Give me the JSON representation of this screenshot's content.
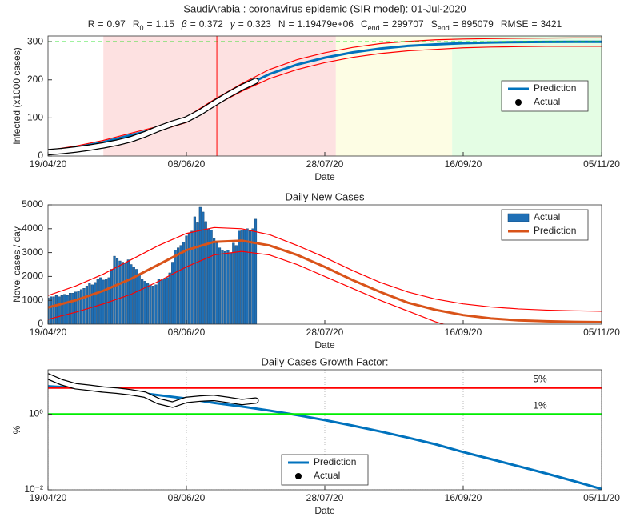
{
  "title": "SaudiArabia : coronavirus epidemic (SIR model): 01-Jul-2020",
  "param_sep": "=",
  "params": [
    {
      "name": "R",
      "value": 0.97
    },
    {
      "name": "R",
      "sub": "0",
      "value": 1.15
    },
    {
      "name": "β",
      "value": 0.372
    },
    {
      "name": "γ",
      "value": 0.323
    },
    {
      "name": "N",
      "value": 1194790,
      "value_label": "1.19479e+06"
    },
    {
      "name": "C",
      "sub": "end",
      "value": 299707
    },
    {
      "name": "S",
      "sub": "end",
      "value": 895079
    },
    {
      "name": "RMSE",
      "value": 3421
    }
  ],
  "chart_data": [
    {
      "type": "line",
      "xlabel": "Date",
      "ylabel": "Infected (x1000 cases)",
      "xlim": [
        "19/04/20",
        "05/11/20"
      ],
      "xticks": [
        "19/04/20",
        "08/06/20",
        "28/07/20",
        "16/09/20",
        "05/11/20"
      ],
      "ylim": [
        0,
        315
      ],
      "yticks": [
        0,
        100,
        200,
        300
      ],
      "grid": false,
      "legend": "right",
      "regions": [
        {
          "start": "09/05/20",
          "end": "01/08/20",
          "color": "#fde1e1"
        },
        {
          "start": "01/08/20",
          "end": "12/09/20",
          "color": "#fdfde4"
        },
        {
          "start": "12/09/20",
          "end": "05/11/20",
          "color": "#e4fde4"
        }
      ],
      "vline": {
        "x": "19/06/20",
        "color": "#ff0000"
      },
      "hline": {
        "value": 299.707,
        "color": "#00dd00"
      },
      "x": [
        "19/04/20",
        "29/04/20",
        "09/05/20",
        "19/05/20",
        "29/05/20",
        "08/06/20",
        "18/06/20",
        "28/06/20",
        "08/07/20",
        "18/07/20",
        "28/07/20",
        "07/08/20",
        "17/08/20",
        "27/08/20",
        "06/09/20",
        "16/09/20",
        "26/09/20",
        "06/10/20",
        "16/10/20",
        "26/10/20",
        "05/11/20"
      ],
      "bounds": [
        {
          "color": "#ff0000",
          "values": [
            15,
            26,
            41,
            60,
            78,
            102,
            148,
            190,
            227,
            253,
            271,
            285,
            295,
            301,
            305,
            307,
            308,
            309,
            309.5,
            310,
            310
          ]
        },
        {
          "color": "#ff0000",
          "values": [
            9,
            18,
            31,
            50,
            66,
            88,
            132,
            170,
            203,
            227,
            245,
            259,
            269,
            276,
            280,
            284,
            286,
            287,
            288,
            288,
            288
          ]
        }
      ],
      "series": [
        {
          "name": "Prediction",
          "style": "line",
          "color": "#0072bd",
          "values": [
            12,
            22,
            36,
            55,
            72,
            95,
            140,
            180,
            215,
            240,
            258,
            272,
            282,
            289,
            293,
            296,
            298,
            299,
            299.5,
            299.7,
            299.7
          ]
        },
        {
          "name": "Actual",
          "style": "marker",
          "color": "#000000",
          "x": [
            "19/04/20",
            "24/04/20",
            "29/04/20",
            "04/05/20",
            "09/05/20",
            "14/05/20",
            "19/05/20",
            "24/05/20",
            "29/05/20",
            "03/06/20",
            "08/06/20",
            "13/06/20",
            "18/06/20",
            "23/06/20",
            "28/06/20",
            "03/07/20"
          ],
          "values": [
            10,
            13,
            17,
            22,
            28,
            35,
            44,
            57,
            72,
            85,
            96,
            115,
            138,
            160,
            180,
            197
          ]
        }
      ]
    },
    {
      "type": "bar",
      "title": "Daily New Cases",
      "xlabel": "Date",
      "ylabel": "Novel cases / day",
      "xlim": [
        "19/04/20",
        "05/11/20"
      ],
      "xticks": [
        "19/04/20",
        "08/06/20",
        "28/07/20",
        "16/09/20",
        "05/11/20"
      ],
      "ylim": [
        0,
        5000
      ],
      "yticks": [
        0,
        1000,
        2000,
        3000,
        4000,
        5000
      ],
      "grid": false,
      "legend": "upper right",
      "x": [
        "19/04/20",
        "29/04/20",
        "09/05/20",
        "19/05/20",
        "29/05/20",
        "08/06/20",
        "18/06/20",
        "28/06/20",
        "08/07/20",
        "18/07/20",
        "28/07/20",
        "07/08/20",
        "17/08/20",
        "27/08/20",
        "06/09/20",
        "16/09/20",
        "26/09/20",
        "06/10/20",
        "16/10/20",
        "26/10/20",
        "05/11/20"
      ],
      "bounds": [
        {
          "color": "#ff0000",
          "values": [
            1200,
            1600,
            2100,
            2700,
            3300,
            3800,
            4050,
            4000,
            3750,
            3300,
            2800,
            2250,
            1750,
            1350,
            1050,
            850,
            720,
            640,
            590,
            560,
            540
          ]
        },
        {
          "color": "#ff0000",
          "values": [
            200,
            500,
            850,
            1250,
            1800,
            2400,
            2900,
            3050,
            2900,
            2500,
            2000,
            1500,
            1000,
            550,
            100,
            -250,
            -450,
            -550,
            -600,
            -620,
            -630
          ]
        }
      ],
      "series": [
        {
          "name": "Actual",
          "style": "bar",
          "color": "#1f6fb5",
          "x": [
            "19/04/20",
            "20/04/20",
            "21/04/20",
            "22/04/20",
            "23/04/20",
            "24/04/20",
            "25/04/20",
            "26/04/20",
            "27/04/20",
            "28/04/20",
            "29/04/20",
            "30/04/20",
            "01/05/20",
            "02/05/20",
            "03/05/20",
            "04/05/20",
            "05/05/20",
            "06/05/20",
            "07/05/20",
            "08/05/20",
            "09/05/20",
            "10/05/20",
            "11/05/20",
            "12/05/20",
            "13/05/20",
            "14/05/20",
            "15/05/20",
            "16/05/20",
            "17/05/20",
            "18/05/20",
            "19/05/20",
            "20/05/20",
            "21/05/20",
            "22/05/20",
            "23/05/20",
            "24/05/20",
            "25/05/20",
            "26/05/20",
            "27/05/20",
            "28/05/20",
            "29/05/20",
            "30/05/20",
            "31/05/20",
            "01/06/20",
            "02/06/20",
            "03/06/20",
            "04/06/20",
            "05/06/20",
            "06/06/20",
            "07/06/20",
            "08/06/20",
            "09/06/20",
            "10/06/20",
            "11/06/20",
            "12/06/20",
            "13/06/20",
            "14/06/20",
            "15/06/20",
            "16/06/20",
            "17/06/20",
            "18/06/20",
            "19/06/20",
            "20/06/20",
            "21/06/20",
            "22/06/20",
            "23/06/20",
            "24/06/20",
            "25/06/20",
            "26/06/20",
            "27/06/20",
            "28/06/20",
            "29/06/20",
            "30/06/20",
            "01/07/20",
            "02/07/20",
            "03/07/20"
          ],
          "values": [
            1100,
            1150,
            1150,
            1200,
            1150,
            1200,
            1250,
            1200,
            1300,
            1300,
            1350,
            1400,
            1450,
            1500,
            1600,
            1700,
            1650,
            1750,
            1900,
            1950,
            1850,
            1900,
            1950,
            2300,
            2850,
            2750,
            2650,
            2600,
            2550,
            2700,
            2500,
            2400,
            2300,
            2100,
            1900,
            1800,
            1700,
            1650,
            1600,
            1650,
            1900,
            1850,
            1900,
            1950,
            2150,
            2600,
            3100,
            3200,
            3300,
            3450,
            3700,
            3800,
            3900,
            4500,
            4250,
            4900,
            4700,
            4300,
            4000,
            3950,
            3600,
            3400,
            3200,
            3100,
            3050,
            3100,
            3000,
            3400,
            3300,
            3900,
            3950,
            3950,
            4000,
            3900,
            4000,
            4400
          ]
        },
        {
          "name": "Prediction",
          "style": "line",
          "color": "#d95319",
          "values": [
            700,
            1000,
            1400,
            1900,
            2500,
            3100,
            3450,
            3500,
            3300,
            2900,
            2400,
            1850,
            1350,
            900,
            600,
            380,
            240,
            160,
            120,
            95,
            85
          ]
        }
      ]
    },
    {
      "type": "line",
      "title": "Daily Cases Growth Factor:",
      "xlabel": "Date",
      "ylabel": "%",
      "log": true,
      "xlim": [
        "19/04/20",
        "05/11/20"
      ],
      "xticks": [
        "19/04/20",
        "08/06/20",
        "28/07/20",
        "16/09/20",
        "05/11/20"
      ],
      "ylim": [
        0.01,
        15
      ],
      "yticks": [
        {
          "value": 0.01,
          "label": "10⁻²"
        },
        {
          "value": 1,
          "label": "10⁰"
        }
      ],
      "grid": true,
      "legend": "lower center",
      "hlines": [
        {
          "value": 5,
          "label": "5%",
          "color": "#ff0000"
        },
        {
          "value": 1,
          "label": "1%",
          "color": "#00ee00"
        }
      ],
      "x": [
        "19/04/20",
        "29/04/20",
        "09/05/20",
        "19/05/20",
        "29/05/20",
        "08/06/20",
        "18/06/20",
        "28/06/20",
        "08/07/20",
        "18/07/20",
        "28/07/20",
        "07/08/20",
        "17/08/20",
        "27/08/20",
        "06/09/20",
        "16/09/20",
        "26/09/20",
        "06/10/20",
        "16/10/20",
        "26/10/20",
        "05/11/20"
      ],
      "series": [
        {
          "name": "Prediction",
          "style": "line",
          "color": "#0072bd",
          "values": [
            5.5,
            5.0,
            4.5,
            3.9,
            3.2,
            2.6,
            2.0,
            1.6,
            1.25,
            0.95,
            0.7,
            0.5,
            0.35,
            0.24,
            0.16,
            0.1,
            0.065,
            0.042,
            0.027,
            0.017,
            0.0105
          ]
        },
        {
          "name": "Actual",
          "style": "marker",
          "color": "#000000",
          "x": [
            "19/04/20",
            "24/04/20",
            "29/04/20",
            "04/05/20",
            "09/05/20",
            "14/05/20",
            "19/05/20",
            "24/05/20",
            "29/05/20",
            "03/06/20",
            "08/06/20",
            "13/06/20",
            "18/06/20",
            "23/06/20",
            "28/06/20",
            "03/07/20"
          ],
          "values": [
            10,
            7,
            5.5,
            5.0,
            4.5,
            4.2,
            3.8,
            3.3,
            2.2,
            1.8,
            2.4,
            2.6,
            2.7,
            2.4,
            2.1,
            2.3
          ]
        }
      ]
    }
  ]
}
